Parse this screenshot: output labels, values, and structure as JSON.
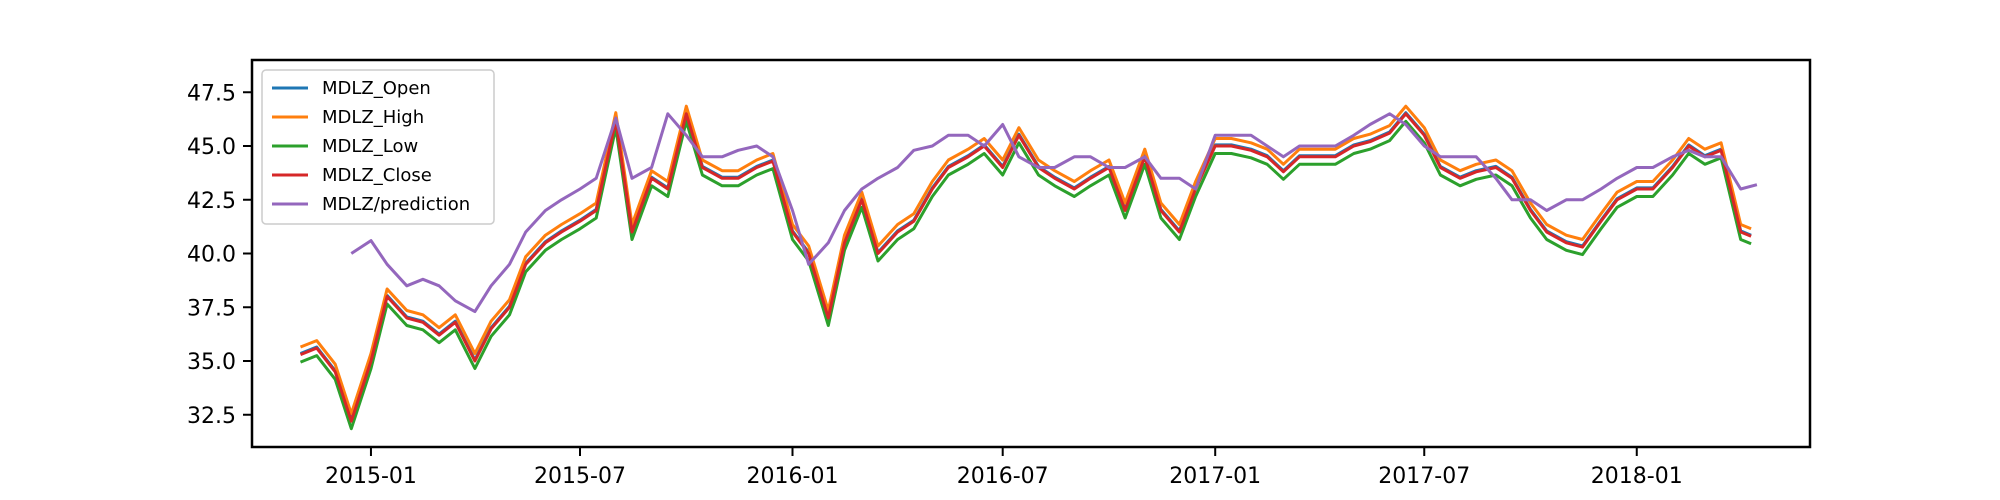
{
  "chart_data": {
    "type": "line",
    "title": "",
    "xlabel": "",
    "ylabel": "",
    "x_ticks": [
      "2015-01",
      "2015-07",
      "2016-01",
      "2016-07",
      "2017-01",
      "2017-07",
      "2018-01"
    ],
    "y_ticks": [
      "32.5",
      "35.0",
      "37.5",
      "40.0",
      "42.5",
      "45.0",
      "47.5"
    ],
    "xlim": [
      "2014-09-20",
      "2018-05-31"
    ],
    "ylim": [
      31.0,
      49.0
    ],
    "grid": false,
    "legend_position": "top-left",
    "x_dates": [
      "2014-11-01",
      "2014-11-15",
      "2014-12-01",
      "2014-12-15",
      "2015-01-01",
      "2015-01-15",
      "2015-02-01",
      "2015-02-15",
      "2015-03-01",
      "2015-03-15",
      "2015-04-01",
      "2015-04-15",
      "2015-05-01",
      "2015-05-15",
      "2015-06-01",
      "2015-06-15",
      "2015-07-01",
      "2015-07-15",
      "2015-08-01",
      "2015-08-15",
      "2015-09-01",
      "2015-09-15",
      "2015-10-01",
      "2015-10-15",
      "2015-11-01",
      "2015-11-15",
      "2015-12-01",
      "2015-12-15",
      "2016-01-01",
      "2016-01-15",
      "2016-02-01",
      "2016-02-15",
      "2016-03-01",
      "2016-03-15",
      "2016-04-01",
      "2016-04-15",
      "2016-05-01",
      "2016-05-15",
      "2016-06-01",
      "2016-06-15",
      "2016-07-01",
      "2016-07-15",
      "2016-08-01",
      "2016-08-15",
      "2016-09-01",
      "2016-09-15",
      "2016-10-01",
      "2016-10-15",
      "2016-11-01",
      "2016-11-15",
      "2016-12-01",
      "2016-12-15",
      "2017-01-01",
      "2017-01-15",
      "2017-02-01",
      "2017-02-15",
      "2017-03-01",
      "2017-03-15",
      "2017-04-01",
      "2017-04-15",
      "2017-05-01",
      "2017-05-15",
      "2017-06-01",
      "2017-06-15",
      "2017-07-01",
      "2017-07-15",
      "2017-08-01",
      "2017-08-15",
      "2017-09-01",
      "2017-09-15",
      "2017-10-01",
      "2017-10-15",
      "2017-11-01",
      "2017-11-15",
      "2017-12-01",
      "2017-12-15",
      "2018-01-01",
      "2018-01-15",
      "2018-02-01",
      "2018-02-15",
      "2018-03-01",
      "2018-03-15",
      "2018-04-01",
      "2018-04-10"
    ],
    "close": [
      35.3,
      35.6,
      34.5,
      32.2,
      35.0,
      38.0,
      37.0,
      36.8,
      36.2,
      36.8,
      35.0,
      36.5,
      37.5,
      39.5,
      40.5,
      41.0,
      41.5,
      42.0,
      46.2,
      41.0,
      43.5,
      43.0,
      46.5,
      44.0,
      43.5,
      43.5,
      44.0,
      44.3,
      41.0,
      40.0,
      37.0,
      40.5,
      42.5,
      40.0,
      41.0,
      41.5,
      43.0,
      44.0,
      44.5,
      45.0,
      44.0,
      45.5,
      44.0,
      43.5,
      43.0,
      43.5,
      44.0,
      42.0,
      44.5,
      42.0,
      41.0,
      43.0,
      45.0,
      45.0,
      44.8,
      44.5,
      43.8,
      44.5,
      44.5,
      44.5,
      45.0,
      45.2,
      45.6,
      46.5,
      45.5,
      44.0,
      43.5,
      43.8,
      44.0,
      43.5,
      42.0,
      41.0,
      40.5,
      40.3,
      41.5,
      42.5,
      43.0,
      43.0,
      44.0,
      45.0,
      44.5,
      44.8,
      41.0,
      40.8
    ],
    "series": [
      {
        "name": "MDLZ_Open",
        "color": "#1f77b4",
        "offset": 0.05
      },
      {
        "name": "MDLZ_High",
        "color": "#ff7f0e",
        "offset": 0.35
      },
      {
        "name": "MDLZ_Low",
        "color": "#2ca02c",
        "offset": -0.35
      },
      {
        "name": "MDLZ_Close",
        "color": "#d62728",
        "offset": 0.0
      },
      {
        "name": "MDLZ/prediction",
        "color": "#9467bd",
        "x_dates": [
          "2014-12-15",
          "2015-01-01",
          "2015-01-15",
          "2015-02-01",
          "2015-02-15",
          "2015-03-01",
          "2015-03-15",
          "2015-04-01",
          "2015-04-15",
          "2015-05-01",
          "2015-05-15",
          "2015-06-01",
          "2015-06-15",
          "2015-07-01",
          "2015-07-15",
          "2015-08-01",
          "2015-08-15",
          "2015-09-01",
          "2015-09-15",
          "2015-10-01",
          "2015-10-15",
          "2015-11-01",
          "2015-11-15",
          "2015-12-01",
          "2015-12-15",
          "2016-01-01",
          "2016-01-15",
          "2016-02-01",
          "2016-02-15",
          "2016-03-01",
          "2016-03-15",
          "2016-04-01",
          "2016-04-15",
          "2016-05-01",
          "2016-05-15",
          "2016-06-01",
          "2016-06-15",
          "2016-07-01",
          "2016-07-15",
          "2016-08-01",
          "2016-08-15",
          "2016-09-01",
          "2016-09-15",
          "2016-10-01",
          "2016-10-15",
          "2016-11-01",
          "2016-11-15",
          "2016-12-01",
          "2016-12-15",
          "2017-01-01",
          "2017-01-15",
          "2017-02-01",
          "2017-02-15",
          "2017-03-01",
          "2017-03-15",
          "2017-04-01",
          "2017-04-15",
          "2017-05-01",
          "2017-05-15",
          "2017-06-01",
          "2017-06-15",
          "2017-07-01",
          "2017-07-15",
          "2017-08-01",
          "2017-08-15",
          "2017-09-01",
          "2017-09-15",
          "2017-10-01",
          "2017-10-15",
          "2017-11-01",
          "2017-11-15",
          "2017-12-01",
          "2017-12-15",
          "2018-01-01",
          "2018-01-15",
          "2018-02-01",
          "2018-02-15",
          "2018-03-01",
          "2018-03-15",
          "2018-04-01",
          "2018-04-15"
        ],
        "values": [
          40.0,
          40.6,
          39.5,
          38.5,
          38.8,
          38.5,
          37.8,
          37.3,
          38.5,
          39.5,
          41.0,
          42.0,
          42.5,
          43.0,
          43.5,
          46.3,
          43.5,
          44.0,
          46.5,
          45.5,
          44.5,
          44.5,
          44.8,
          45.0,
          44.5,
          42.0,
          39.5,
          40.5,
          42.0,
          43.0,
          43.5,
          44.0,
          44.8,
          45.0,
          45.5,
          45.5,
          45.0,
          46.0,
          44.5,
          44.0,
          44.0,
          44.5,
          44.5,
          44.0,
          44.0,
          44.5,
          43.5,
          43.5,
          43.0,
          45.5,
          45.5,
          45.5,
          45.0,
          44.5,
          45.0,
          45.0,
          45.0,
          45.5,
          46.0,
          46.5,
          46.0,
          45.0,
          44.5,
          44.5,
          44.5,
          43.5,
          42.5,
          42.5,
          42.0,
          42.5,
          42.5,
          43.0,
          43.5,
          44.0,
          44.0,
          44.5,
          44.8,
          44.5,
          44.5,
          43.0,
          43.2
        ]
      }
    ]
  }
}
